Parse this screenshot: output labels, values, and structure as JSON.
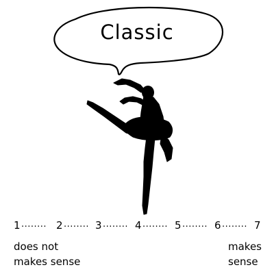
{
  "bubble": {
    "text": "Classic"
  },
  "figure": {
    "icon": "ballet-dancer-silhouette"
  },
  "scale": {
    "points": [
      "1",
      "2",
      "3",
      "4",
      "5",
      "6",
      "7"
    ],
    "separator": "........",
    "left_anchor": [
      "does not",
      "makes sense"
    ],
    "right_anchor": [
      "makes",
      "sense"
    ]
  }
}
